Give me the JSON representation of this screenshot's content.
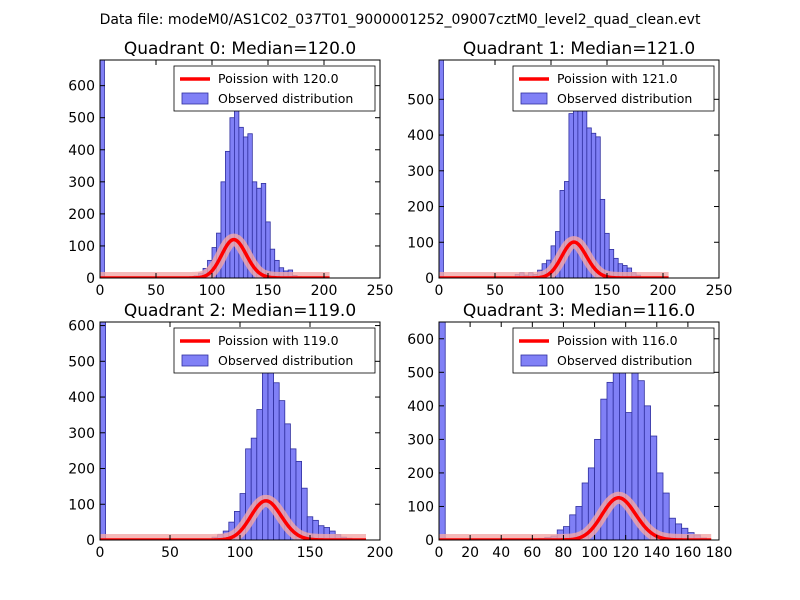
{
  "figure": {
    "suptitle": "Data file: modeM0/AS1C02_037T01_9000001252_09007cztM0_level2_quad_clean.evt"
  },
  "colors": {
    "hist_fill": "#8080f6",
    "hist_edge": "#2f2f9f",
    "poisson_line": "#ff0000",
    "poisson_shadow": "#f2a7a7"
  },
  "chart_data": [
    {
      "type": "histogram+line",
      "title": "Quadrant 0: Median=120.0",
      "median": 120.0,
      "xlim": [
        0,
        250
      ],
      "ylim": [
        0,
        680
      ],
      "xticks": [
        0,
        50,
        100,
        150,
        200,
        250
      ],
      "yticks": [
        0,
        100,
        200,
        300,
        400,
        500,
        600
      ],
      "bin_width": 4,
      "zero_bin_value": 680,
      "bins": [
        [
          68,
          3
        ],
        [
          72,
          2
        ],
        [
          76,
          3
        ],
        [
          80,
          5
        ],
        [
          84,
          7
        ],
        [
          88,
          15
        ],
        [
          92,
          30
        ],
        [
          96,
          55
        ],
        [
          100,
          95
        ],
        [
          104,
          140
        ],
        [
          108,
          300
        ],
        [
          112,
          395
        ],
        [
          116,
          500
        ],
        [
          120,
          580
        ],
        [
          124,
          470
        ],
        [
          128,
          440
        ],
        [
          132,
          450
        ],
        [
          136,
          300
        ],
        [
          140,
          280
        ],
        [
          144,
          295
        ],
        [
          148,
          175
        ],
        [
          152,
          90
        ],
        [
          156,
          55
        ],
        [
          160,
          32
        ],
        [
          164,
          22
        ],
        [
          168,
          25
        ],
        [
          172,
          8
        ],
        [
          176,
          4
        ],
        [
          180,
          2
        ]
      ],
      "series": [
        {
          "name": "Poission with 120.0",
          "kind": "line",
          "lambda": 120.0,
          "scale": 3290,
          "x_range": [
            0,
            205
          ]
        },
        {
          "name": "Observed distribution",
          "kind": "bars"
        }
      ],
      "legend": [
        "Poission with 120.0",
        "Observed distribution"
      ],
      "legend_loc": "upper right"
    },
    {
      "type": "histogram+line",
      "title": "Quadrant 1: Median=121.0",
      "median": 121.0,
      "xlim": [
        0,
        250
      ],
      "ylim": [
        0,
        610
      ],
      "xticks": [
        0,
        50,
        100,
        150,
        200,
        250
      ],
      "yticks": [
        0,
        100,
        200,
        300,
        400,
        500
      ],
      "bin_width": 4,
      "zero_bin_value": 610,
      "bins": [
        [
          68,
          10
        ],
        [
          72,
          15
        ],
        [
          76,
          8
        ],
        [
          80,
          15
        ],
        [
          84,
          10
        ],
        [
          88,
          22
        ],
        [
          92,
          40
        ],
        [
          96,
          50
        ],
        [
          100,
          90
        ],
        [
          104,
          130
        ],
        [
          108,
          245
        ],
        [
          112,
          270
        ],
        [
          116,
          460
        ],
        [
          120,
          505
        ],
        [
          124,
          530
        ],
        [
          128,
          560
        ],
        [
          132,
          420
        ],
        [
          136,
          405
        ],
        [
          140,
          395
        ],
        [
          144,
          220
        ],
        [
          148,
          125
        ],
        [
          152,
          80
        ],
        [
          156,
          55
        ],
        [
          160,
          40
        ],
        [
          164,
          35
        ],
        [
          168,
          28
        ],
        [
          172,
          15
        ],
        [
          176,
          8
        ],
        [
          180,
          3
        ]
      ],
      "series": [
        {
          "name": "Poission with 121.0",
          "kind": "line",
          "lambda": 121.0,
          "scale": 2770,
          "x_range": [
            0,
            205
          ]
        },
        {
          "name": "Observed distribution",
          "kind": "bars"
        }
      ],
      "legend": [
        "Poission with 121.0",
        "Observed distribution"
      ],
      "legend_loc": "upper right"
    },
    {
      "type": "histogram+line",
      "title": "Quadrant 2: Median=119.0",
      "median": 119.0,
      "xlim": [
        0,
        200
      ],
      "ylim": [
        0,
        610
      ],
      "xticks": [
        0,
        50,
        100,
        150,
        200
      ],
      "yticks": [
        0,
        100,
        200,
        300,
        400,
        500,
        600
      ],
      "bin_width": 4,
      "zero_bin_value": 610,
      "bins": [
        [
          80,
          8
        ],
        [
          84,
          15
        ],
        [
          88,
          25
        ],
        [
          92,
          50
        ],
        [
          96,
          80
        ],
        [
          100,
          130
        ],
        [
          104,
          255
        ],
        [
          108,
          285
        ],
        [
          112,
          365
        ],
        [
          116,
          490
        ],
        [
          120,
          545
        ],
        [
          124,
          440
        ],
        [
          128,
          390
        ],
        [
          132,
          325
        ],
        [
          136,
          255
        ],
        [
          140,
          220
        ],
        [
          144,
          145
        ],
        [
          148,
          65
        ],
        [
          152,
          55
        ],
        [
          156,
          40
        ],
        [
          160,
          35
        ],
        [
          164,
          25
        ],
        [
          168,
          15
        ],
        [
          172,
          8
        ],
        [
          176,
          5
        ],
        [
          180,
          3
        ]
      ],
      "series": [
        {
          "name": "Poission with 119.0",
          "kind": "line",
          "lambda": 119.0,
          "scale": 3000,
          "x_range": [
            0,
            190
          ]
        },
        {
          "name": "Observed distribution",
          "kind": "bars"
        }
      ],
      "legend": [
        "Poission with 119.0",
        "Observed distribution"
      ],
      "legend_loc": "upper right"
    },
    {
      "type": "histogram+line",
      "title": "Quadrant 3: Median=116.0",
      "median": 116.0,
      "xlim": [
        0,
        180
      ],
      "ylim": [
        0,
        650
      ],
      "xticks": [
        0,
        20,
        40,
        60,
        80,
        100,
        120,
        140,
        160,
        180
      ],
      "yticks": [
        0,
        100,
        200,
        300,
        400,
        500,
        600
      ],
      "bin_width": 4,
      "zero_bin_value": 650,
      "bins": [
        [
          56,
          2
        ],
        [
          60,
          4
        ],
        [
          64,
          5
        ],
        [
          68,
          8
        ],
        [
          72,
          12
        ],
        [
          76,
          30
        ],
        [
          80,
          40
        ],
        [
          84,
          75
        ],
        [
          88,
          100
        ],
        [
          92,
          170
        ],
        [
          96,
          215
        ],
        [
          100,
          300
        ],
        [
          104,
          420
        ],
        [
          108,
          470
        ],
        [
          112,
          595
        ],
        [
          116,
          600
        ],
        [
          120,
          380
        ],
        [
          124,
          520
        ],
        [
          128,
          475
        ],
        [
          132,
          400
        ],
        [
          136,
          310
        ],
        [
          140,
          200
        ],
        [
          144,
          140
        ],
        [
          148,
          65
        ],
        [
          152,
          48
        ],
        [
          156,
          35
        ],
        [
          160,
          22
        ],
        [
          164,
          15
        ],
        [
          168,
          6
        ]
      ],
      "series": [
        {
          "name": "Poission with 116.0",
          "kind": "line",
          "lambda": 116.0,
          "scale": 3400,
          "x_range": [
            0,
            175
          ]
        },
        {
          "name": "Observed distribution",
          "kind": "bars"
        }
      ],
      "legend": [
        "Poission with 116.0",
        "Observed distribution"
      ],
      "legend_loc": "upper right"
    }
  ]
}
